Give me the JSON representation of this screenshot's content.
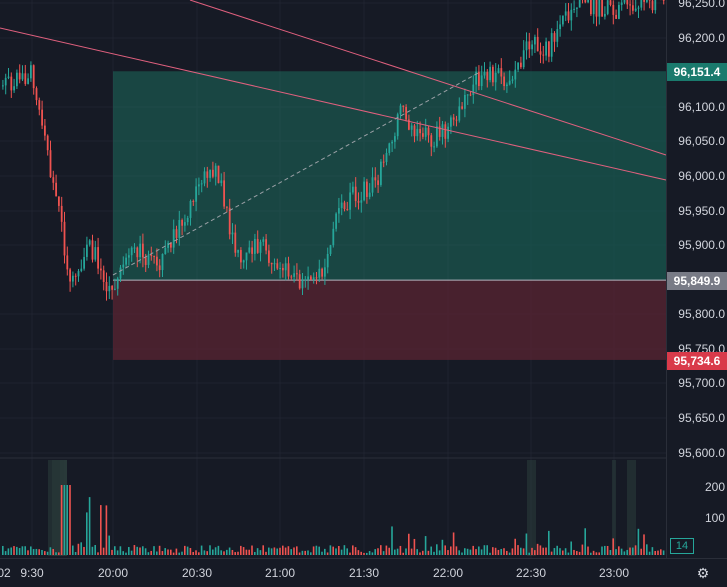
{
  "price_axis": {
    "ticks": [
      "96,250.0",
      "96,200.0",
      "96,100.0",
      "96,050.0",
      "96,000.0",
      "95,950.0",
      "95,900.0",
      "95,800.0",
      "95,750.0",
      "95,700.0",
      "95,650.0",
      "95,600.0"
    ],
    "badges": {
      "target": "96,151.4",
      "entry": "95,849.9",
      "stop": "95,734.6"
    }
  },
  "volume_axis": {
    "ticks": [
      "200",
      "100"
    ],
    "current_badge": "14"
  },
  "time_axis": {
    "labels": [
      "02",
      "9:30",
      "20:00",
      "20:30",
      "21:00",
      "21:30",
      "22:00",
      "22:30",
      "23:00"
    ]
  },
  "position": {
    "entry_price": 95849.9,
    "target_price": 96151.4,
    "stop_price": 95734.6
  },
  "colors": {
    "background": "#161a25",
    "up": "#26a69a",
    "down": "#ef5350",
    "profit_zone": "#1e6b5c",
    "loss_zone": "#5a2431",
    "trendline": "#e0607e"
  },
  "icons": {
    "settings": "gear-icon"
  }
}
